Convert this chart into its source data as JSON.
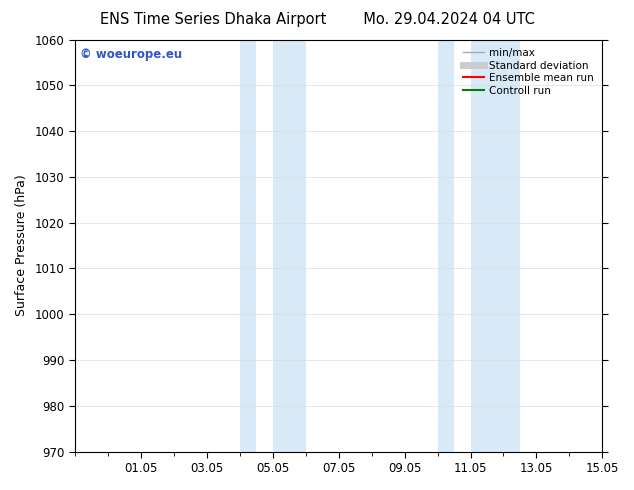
{
  "title_left": "ENS Time Series Dhaka Airport",
  "title_right": "Mo. 29.04.2024 04 UTC",
  "ylabel": "Surface Pressure (hPa)",
  "ylim": [
    970,
    1060
  ],
  "yticks": [
    970,
    980,
    990,
    1000,
    1010,
    1020,
    1030,
    1040,
    1050,
    1060
  ],
  "xtick_labels": [
    "01.05",
    "03.05",
    "05.05",
    "07.05",
    "09.05",
    "11.05",
    "13.05",
    "15.05"
  ],
  "xtick_positions": [
    2,
    4,
    6,
    8,
    10,
    12,
    14,
    16
  ],
  "shaded_regions": [
    {
      "x_start": 5.0,
      "x_end": 5.5
    },
    {
      "x_start": 6.0,
      "x_end": 7.0
    },
    {
      "x_start": 11.0,
      "x_end": 11.5
    },
    {
      "x_start": 12.0,
      "x_end": 13.5
    }
  ],
  "shaded_color": "#d8eaf8",
  "watermark_text": "© woeurope.eu",
  "watermark_color": "#3355cc",
  "legend_items": [
    {
      "label": "min/max",
      "color": "#aaaaaa",
      "lw": 1.0
    },
    {
      "label": "Standard deviation",
      "color": "#cccccc",
      "lw": 5
    },
    {
      "label": "Ensemble mean run",
      "color": "red",
      "lw": 1.5
    },
    {
      "label": "Controll run",
      "color": "green",
      "lw": 1.5
    }
  ],
  "bg_color": "#ffffff",
  "grid_color": "#dddddd",
  "tick_fontsize": 8.5,
  "label_fontsize": 9,
  "title_fontsize": 10.5,
  "x_min": 0,
  "x_max": 16
}
